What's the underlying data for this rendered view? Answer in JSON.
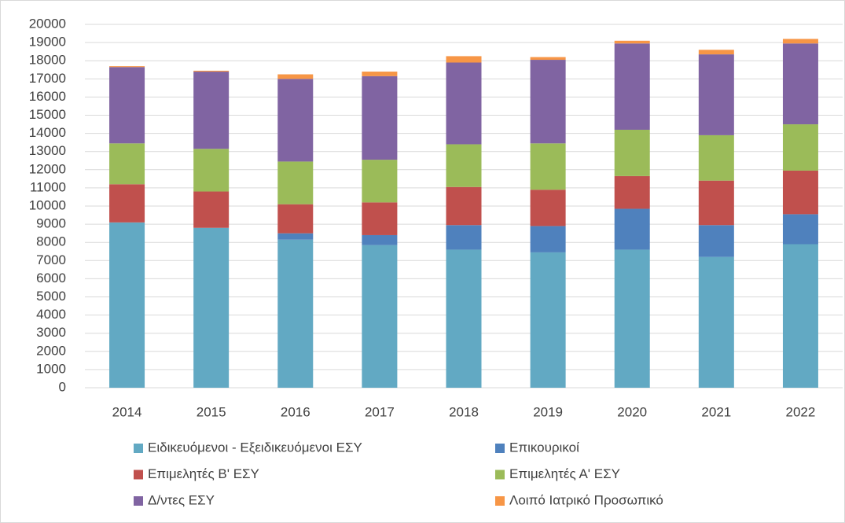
{
  "chart_data": {
    "type": "stacked_bar",
    "categories": [
      "2014",
      "2015",
      "2016",
      "2017",
      "2018",
      "2019",
      "2020",
      "2021",
      "2022"
    ],
    "series": [
      {
        "name": "Ειδικευόμενοι - Εξειδικευόμενοι ΕΣΥ",
        "color": "#62a9c3",
        "values": [
          9100,
          8800,
          8150,
          7850,
          7600,
          7450,
          7600,
          7200,
          7900
        ]
      },
      {
        "name": "Επικουρικοί",
        "color": "#4f81bd",
        "values": [
          0,
          0,
          350,
          550,
          1350,
          1450,
          2250,
          1750,
          1650
        ]
      },
      {
        "name": "Επιμελητές Β' ΕΣΥ",
        "color": "#c0504d",
        "values": [
          2100,
          2000,
          1600,
          1800,
          2100,
          2000,
          1800,
          2450,
          2400
        ]
      },
      {
        "name": "Επιμελητές Α'  ΕΣΥ",
        "color": "#9bbb59",
        "values": [
          2250,
          2350,
          2350,
          2350,
          2350,
          2550,
          2550,
          2500,
          2550
        ]
      },
      {
        "name": "Δ/ντες ΕΣΥ",
        "color": "#8064a2",
        "values": [
          4200,
          4250,
          4550,
          4600,
          4500,
          4600,
          4750,
          4450,
          4450
        ]
      },
      {
        "name": "Λοιπό Ιατρικό Προσωπικό",
        "color": "#f79646",
        "values": [
          50,
          50,
          250,
          250,
          350,
          150,
          150,
          250,
          250
        ]
      }
    ],
    "ylim": [
      0,
      20000
    ],
    "yticks": [
      0,
      1000,
      2000,
      3000,
      4000,
      5000,
      6000,
      7000,
      8000,
      9000,
      10000,
      11000,
      12000,
      13000,
      14000,
      15000,
      16000,
      17000,
      18000,
      19000,
      20000
    ],
    "grid": true
  }
}
